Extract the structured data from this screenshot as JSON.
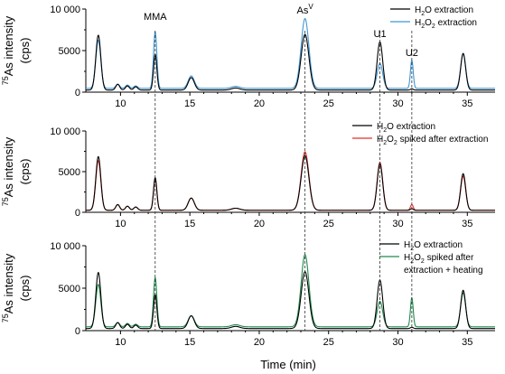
{
  "chart_data": {
    "type": "line",
    "x_axis": {
      "label": "Time (min)",
      "range": [
        7.5,
        37
      ],
      "ticks": [
        10,
        15,
        20,
        25,
        30,
        35
      ],
      "tick_labels": [
        "10",
        "15",
        "20",
        "25",
        "30",
        "35"
      ]
    },
    "y_axis_label": "As intensity",
    "y_axis_label_prefix": "75",
    "y_axis_unit": "(cps)",
    "annotations": [
      {
        "text": "MMA",
        "x": 12.5,
        "panel": 0
      },
      {
        "text": "As",
        "sup": "V",
        "x": 23.3,
        "panel": 0
      },
      {
        "text": "U1",
        "x": 28.7,
        "panel": 0
      },
      {
        "text": "U2",
        "x": 31.0,
        "panel": 0
      }
    ],
    "reference_lines_x": [
      12.5,
      23.3,
      28.7,
      31.0
    ],
    "panels": [
      {
        "ylim": [
          0,
          10000
        ],
        "yticks": [
          0,
          5000,
          10000
        ],
        "ytick_labels": [
          "0",
          "5000",
          "10 000"
        ],
        "legend_position": "top-right",
        "series": [
          {
            "name": "H2O extraction",
            "legend": {
              "pre": "H",
              "sub": "2",
              "post": "O extraction"
            },
            "color": "#000000",
            "baseline": 250,
            "peaks": [
              [
                8.4,
                6600,
                0.18
              ],
              [
                9.8,
                700,
                0.14
              ],
              [
                10.5,
                500,
                0.14
              ],
              [
                11.1,
                400,
                0.14
              ],
              [
                12.5,
                4300,
                0.12
              ],
              [
                15.1,
                1500,
                0.22
              ],
              [
                18.3,
                250,
                0.3
              ],
              [
                23.3,
                6700,
                0.28
              ],
              [
                28.7,
                5800,
                0.2
              ],
              [
                31.0,
                150,
                0.1
              ],
              [
                34.7,
                4400,
                0.18
              ]
            ]
          },
          {
            "name": "H2O2 extraction",
            "legend": {
              "pre": "H",
              "sub": "2",
              "mid": "O",
              "sub2": "2",
              "post": " extraction"
            },
            "color": "#3f97d4",
            "baseline": 450,
            "peaks": [
              [
                8.4,
                5800,
                0.18
              ],
              [
                9.8,
                500,
                0.14
              ],
              [
                10.5,
                400,
                0.14
              ],
              [
                11.1,
                300,
                0.14
              ],
              [
                12.5,
                6800,
                0.12
              ],
              [
                15.1,
                1500,
                0.22
              ],
              [
                18.3,
                250,
                0.3
              ],
              [
                23.3,
                8400,
                0.28
              ],
              [
                28.7,
                3000,
                0.2
              ],
              [
                31.0,
                3400,
                0.1
              ],
              [
                34.7,
                4200,
                0.18
              ]
            ]
          }
        ]
      },
      {
        "ylim": [
          0,
          10000
        ],
        "yticks": [
          0,
          5000,
          10000
        ],
        "ytick_labels": [
          "0",
          "5000",
          "10 000"
        ],
        "legend_position": "top-right",
        "series": [
          {
            "name": "H2O extraction",
            "legend": {
              "pre": "H",
              "sub": "2",
              "post": "O extraction"
            },
            "color": "#000000",
            "baseline": 250,
            "peaks": [
              [
                8.4,
                6600,
                0.18
              ],
              [
                9.8,
                700,
                0.14
              ],
              [
                10.5,
                500,
                0.14
              ],
              [
                11.1,
                400,
                0.14
              ],
              [
                12.5,
                4000,
                0.12
              ],
              [
                15.1,
                1500,
                0.22
              ],
              [
                18.3,
                250,
                0.3
              ],
              [
                23.3,
                6700,
                0.28
              ],
              [
                28.7,
                5700,
                0.2
              ],
              [
                31.0,
                200,
                0.1
              ],
              [
                34.7,
                4500,
                0.18
              ]
            ]
          },
          {
            "name": "H2O2 spiked after extraction",
            "legend": {
              "pre": "H",
              "sub": "2",
              "mid": "O",
              "sub2": "2",
              "post": " spiked after extraction"
            },
            "color": "#e0302b",
            "baseline": 250,
            "peaks": [
              [
                8.4,
                6100,
                0.18
              ],
              [
                9.8,
                700,
                0.14
              ],
              [
                10.5,
                500,
                0.14
              ],
              [
                11.1,
                400,
                0.14
              ],
              [
                12.5,
                3900,
                0.12
              ],
              [
                15.1,
                1500,
                0.22
              ],
              [
                18.3,
                250,
                0.3
              ],
              [
                23.3,
                7200,
                0.28
              ],
              [
                28.7,
                5900,
                0.2
              ],
              [
                31.0,
                700,
                0.1
              ],
              [
                34.7,
                4200,
                0.18
              ]
            ]
          }
        ]
      },
      {
        "ylim": [
          0,
          10000
        ],
        "yticks": [
          0,
          5000,
          10000
        ],
        "ytick_labels": [
          "0",
          "5000",
          "10 000"
        ],
        "legend_position": "top-right",
        "series": [
          {
            "name": "H2O extraction",
            "legend": {
              "pre": "H",
              "sub": "2",
              "post": "O extraction"
            },
            "color": "#000000",
            "baseline": 250,
            "peaks": [
              [
                8.4,
                6600,
                0.18
              ],
              [
                9.8,
                700,
                0.14
              ],
              [
                10.5,
                500,
                0.14
              ],
              [
                11.1,
                400,
                0.14
              ],
              [
                12.5,
                4000,
                0.12
              ],
              [
                15.1,
                1500,
                0.22
              ],
              [
                18.3,
                250,
                0.3
              ],
              [
                23.3,
                6700,
                0.28
              ],
              [
                28.7,
                5700,
                0.2
              ],
              [
                31.0,
                150,
                0.1
              ],
              [
                34.7,
                4500,
                0.18
              ]
            ]
          },
          {
            "name": "H2O2 spiked after extraction + heating",
            "legend": {
              "pre": "H",
              "sub": "2",
              "mid": "O",
              "sub2": "2",
              "post": " spiked after",
              "line2": "extraction + heating"
            },
            "color": "#1f8a4c",
            "baseline": 450,
            "peaks": [
              [
                8.4,
                5000,
                0.18
              ],
              [
                9.8,
                500,
                0.14
              ],
              [
                10.5,
                400,
                0.14
              ],
              [
                11.1,
                300,
                0.14
              ],
              [
                12.5,
                5800,
                0.12
              ],
              [
                15.1,
                1300,
                0.22
              ],
              [
                18.3,
                250,
                0.3
              ],
              [
                23.3,
                8500,
                0.28
              ],
              [
                28.7,
                3000,
                0.2
              ],
              [
                31.0,
                3400,
                0.1
              ],
              [
                34.7,
                4000,
                0.18
              ]
            ]
          }
        ]
      }
    ]
  }
}
